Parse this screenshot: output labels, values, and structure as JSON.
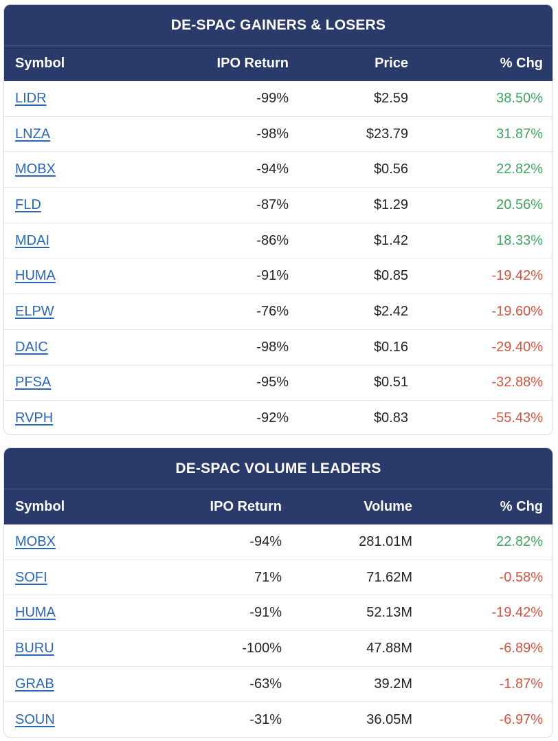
{
  "gainers_losers": {
    "title": "DE-SPAC GAINERS & LOSERS",
    "headers": {
      "symbol": "Symbol",
      "ipo_return": "IPO Return",
      "price": "Price",
      "chg": "% Chg"
    },
    "rows": [
      {
        "symbol": "LIDR",
        "ipo_return": "-99%",
        "price": "$2.59",
        "chg": "38.50%",
        "dir": "pos"
      },
      {
        "symbol": "LNZA",
        "ipo_return": "-98%",
        "price": "$23.79",
        "chg": "31.87%",
        "dir": "pos"
      },
      {
        "symbol": "MOBX",
        "ipo_return": "-94%",
        "price": "$0.56",
        "chg": "22.82%",
        "dir": "pos"
      },
      {
        "symbol": "FLD",
        "ipo_return": "-87%",
        "price": "$1.29",
        "chg": "20.56%",
        "dir": "pos"
      },
      {
        "symbol": "MDAI",
        "ipo_return": "-86%",
        "price": "$1.42",
        "chg": "18.33%",
        "dir": "pos"
      },
      {
        "symbol": "HUMA",
        "ipo_return": "-91%",
        "price": "$0.85",
        "chg": "-19.42%",
        "dir": "neg"
      },
      {
        "symbol": "ELPW",
        "ipo_return": "-76%",
        "price": "$2.42",
        "chg": "-19.60%",
        "dir": "neg"
      },
      {
        "symbol": "DAIC",
        "ipo_return": "-98%",
        "price": "$0.16",
        "chg": "-29.40%",
        "dir": "neg"
      },
      {
        "symbol": "PFSA",
        "ipo_return": "-95%",
        "price": "$0.51",
        "chg": "-32.88%",
        "dir": "neg"
      },
      {
        "symbol": "RVPH",
        "ipo_return": "-92%",
        "price": "$0.83",
        "chg": "-55.43%",
        "dir": "neg"
      }
    ]
  },
  "volume_leaders": {
    "title": "DE-SPAC VOLUME LEADERS",
    "headers": {
      "symbol": "Symbol",
      "ipo_return": "IPO Return",
      "volume": "Volume",
      "chg": "% Chg"
    },
    "rows": [
      {
        "symbol": "MOBX",
        "ipo_return": "-94%",
        "volume": "281.01M",
        "chg": "22.82%",
        "dir": "pos"
      },
      {
        "symbol": "SOFI",
        "ipo_return": "71%",
        "volume": "71.62M",
        "chg": "-0.58%",
        "dir": "neg"
      },
      {
        "symbol": "HUMA",
        "ipo_return": "-91%",
        "volume": "52.13M",
        "chg": "-19.42%",
        "dir": "neg"
      },
      {
        "symbol": "BURU",
        "ipo_return": "-100%",
        "volume": "47.88M",
        "chg": "-6.89%",
        "dir": "neg"
      },
      {
        "symbol": "GRAB",
        "ipo_return": "-63%",
        "volume": "39.2M",
        "chg": "-1.87%",
        "dir": "neg"
      },
      {
        "symbol": "SOUN",
        "ipo_return": "-31%",
        "volume": "36.05M",
        "chg": "-6.97%",
        "dir": "neg"
      }
    ]
  },
  "colors": {
    "header_bg": "#2a3b6b",
    "link": "#2a66b8",
    "positive": "#3fa660",
    "negative": "#d6533f"
  }
}
